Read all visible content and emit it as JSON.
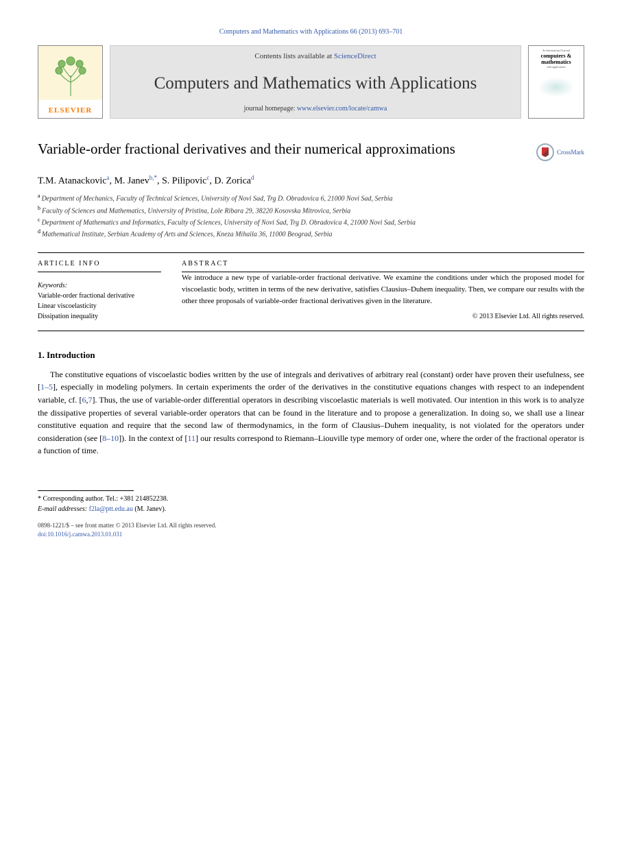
{
  "citation": "Computers and Mathematics with Applications 66 (2013) 693–701",
  "banner": {
    "contents_prefix": "Contents lists available at ",
    "contents_link": "ScienceDirect",
    "journal_title": "Computers and Mathematics with Applications",
    "homepage_prefix": "journal homepage: ",
    "homepage_link": "www.elsevier.com/locate/camwa"
  },
  "elsevier_label": "ELSEVIER",
  "cover": {
    "line1": "An International Journal",
    "line2a": "computers &",
    "line2b": "mathematics",
    "line3": "with applications"
  },
  "crossmark_label": "CrossMark",
  "title": "Variable-order fractional derivatives and their numerical approximations",
  "authors_html": "T.M. Atanackovic<sup><a>a</a></sup>, M. Janev<sup><a>b</a>,<a>*</a></sup>, S. Pilipovic<sup><a>c</a></sup>, D. Zorica<sup><a>d</a></sup>",
  "affiliations": [
    {
      "sup": "a",
      "text": "Department of Mechanics, Faculty of Technical Sciences, University of Novi Sad, Trg D. Obradovica 6, 21000 Novi Sad, Serbia"
    },
    {
      "sup": "b",
      "text": "Faculty of Sciences and Mathematics, University of Pristina, Lole Ribara 29, 38220 Kosovska Mitrovica, Serbia"
    },
    {
      "sup": "c",
      "text": "Department of Mathematics and Informatics, Faculty of Sciences, University of Novi Sad, Trg D. Obradovica 4, 21000 Novi Sad, Serbia"
    },
    {
      "sup": "d",
      "text": "Mathematical Institute, Serbian Academy of Arts and Sciences, Kneza Mihaila 36, 11000 Beograd, Serbia"
    }
  ],
  "article_info": {
    "heading": "ARTICLE INFO",
    "keywords_heading": "Keywords:",
    "keywords": [
      "Variable-order fractional derivative",
      "Linear viscoelasticity",
      "Dissipation inequality"
    ]
  },
  "abstract": {
    "heading": "ABSTRACT",
    "text": "We introduce a new type of variable-order fractional derivative. We examine the conditions under which the proposed model for viscoelastic body, written in terms of the new derivative, satisfies Clausius–Duhem inequality. Then, we compare our results with the other three proposals of variable-order fractional derivatives given in the literature.",
    "copyright": "© 2013 Elsevier Ltd. All rights reserved."
  },
  "section1_heading": "1. Introduction",
  "body_html": "The constitutive equations of viscoelastic bodies written by the use of integrals and derivatives of arbitrary real (constant) order have proven their usefulness, see [<span class=\"cite\">1–5</span>], especially in modeling polymers. In certain experiments the order of the derivatives in the constitutive equations changes with respect to an independent variable, cf. [<span class=\"cite\">6</span>,<span class=\"cite\">7</span>]. Thus, the use of variable-order differential operators in describing viscoelastic materials is well motivated. Our intention in this work is to analyze the dissipative properties of several variable-order operators that can be found in the literature and to propose a generalization. In doing so, we shall use a linear constitutive equation and require that the second law of thermodynamics, in the form of Clausius–Duhem inequality, is not violated for the operators under consideration (see [<span class=\"cite\">8–10</span>]). In the context of [<span class=\"cite\">11</span>] our results correspond to Riemann–Liouville type memory of order one, where the order of the fractional operator is a function of time.",
  "footnote": {
    "star": "* Corresponding author. Tel.: +381 214852238.",
    "email_label": "E-mail addresses:",
    "email": "f2la@ptt.edu.au",
    "email_who": " (M. Janev)."
  },
  "publine": {
    "line1": "0898-1221/$ – see front matter © 2013 Elsevier Ltd. All rights reserved.",
    "doi": "doi:10.1016/j.camwa.2013.01.031"
  }
}
